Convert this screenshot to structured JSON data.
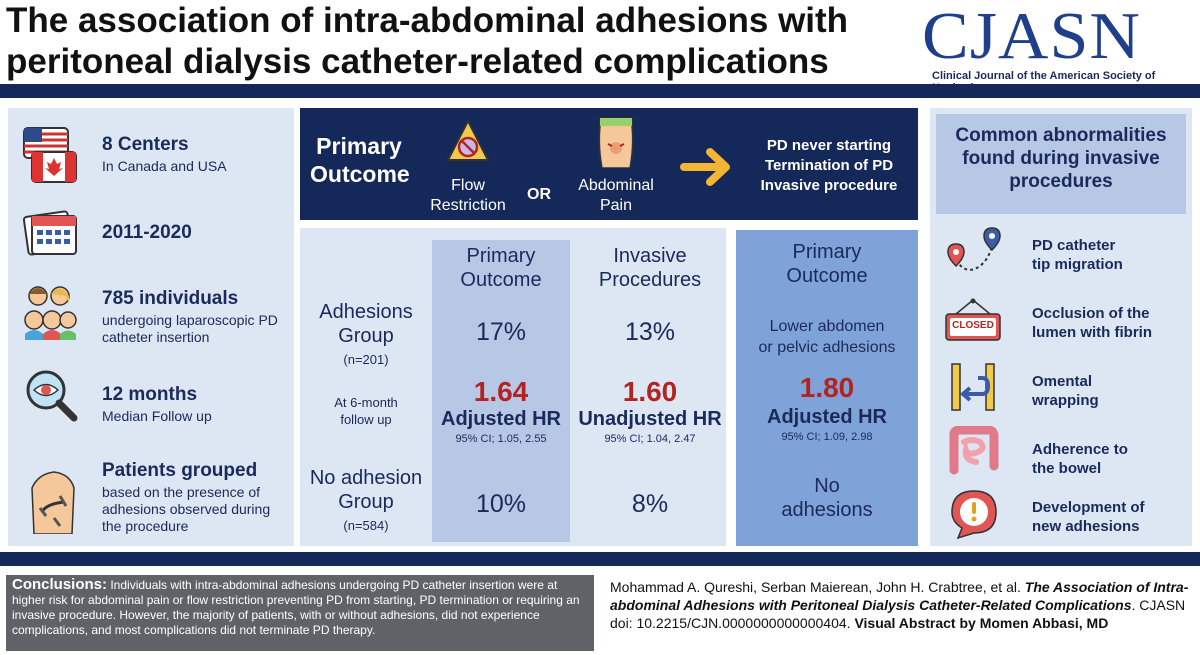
{
  "header": {
    "title_line1": "The association of intra-abdominal adhesions with",
    "title_line2": "peritoneal dialysis catheter-related complications",
    "logo_text": "CJASN",
    "logo_subtitle": "Clinical Journal of the American Society of Nephrology"
  },
  "left": {
    "items": [
      {
        "title": "8 Centers",
        "sub": "In Canada and USA",
        "icon": "flags-icon"
      },
      {
        "title": "2011-2020",
        "sub": "",
        "icon": "calendar-icon"
      },
      {
        "title": "785 individuals",
        "sub": "undergoing laparoscopic PD catheter insertion",
        "icon": "people-icon"
      },
      {
        "title": "12 months",
        "sub": "Median Follow up",
        "icon": "magnifier-eye-icon"
      },
      {
        "title": "Patients grouped",
        "sub": "based on the presence of adhesions observed during the procedure",
        "icon": "abdomen-catheter-icon"
      }
    ]
  },
  "outcome": {
    "label_line1": "Primary",
    "label_line2": "Outcome",
    "flow_line1": "Flow",
    "flow_line2": "Restriction",
    "or": "OR",
    "pain_line1": "Abdominal",
    "pain_line2": "Pain",
    "result_line1": "PD never starting",
    "result_line2": "Termination of PD",
    "result_line3": "Invasive procedure"
  },
  "table": {
    "adhesions_line1": "Adhesions",
    "adhesions_line2": "Group",
    "adhesions_n": "(n=201)",
    "followup_line1": "At 6-month",
    "followup_line2": "follow up",
    "noadh_line1": "No adhesion",
    "noadh_line2": "Group",
    "noadh_n": "(n=584)",
    "col1_head1": "Primary",
    "col1_head2": "Outcome",
    "col1_adh": "17%",
    "col1_hr": "1.64",
    "col1_hr_label": "Adjusted HR",
    "col1_ci": "95% CI; 1.05, 2.55",
    "col1_noadh": "10%",
    "col2_head1": "Invasive",
    "col2_head2": "Procedures",
    "col2_adh": "13%",
    "col2_hr": "1.60",
    "col2_hr_label": "Unadjusted HR",
    "col2_ci": "95% CI; 1.04, 2.47",
    "col2_noadh": "8%",
    "col3_head1": "Primary",
    "col3_head2": "Outcome",
    "col3_adh1": "Lower abdomen",
    "col3_adh2": "or pelvic adhesions",
    "col3_hr": "1.80",
    "col3_hr_label": "Adjusted HR",
    "col3_ci": "95% CI; 1.09, 2.98",
    "col3_noadh1": "No",
    "col3_noadh2": "adhesions"
  },
  "right": {
    "head_line1": "Common abnormalities",
    "head_line2": "found during invasive",
    "head_line3": "procedures",
    "items": [
      {
        "line1": "PD catheter",
        "line2": "tip migration",
        "icon": "location-pins-icon"
      },
      {
        "line1": "Occlusion of the",
        "line2": "lumen with fibrin",
        "icon": "closed-sign-icon"
      },
      {
        "line1": "Omental",
        "line2": "wrapping",
        "icon": "wrap-arrow-icon"
      },
      {
        "line1": "Adherence to",
        "line2": "the bowel",
        "icon": "intestine-icon"
      },
      {
        "line1": "Development of",
        "line2": "new adhesions",
        "icon": "warning-bubble-icon"
      }
    ],
    "closed_sign_text": "CLOSED"
  },
  "footer": {
    "conclusions_label": "Conclusions:",
    "conclusions_text": " Individuals with intra-abdominal adhesions undergoing PD catheter insertion were at higher risk for abdominal pain or flow restriction preventing PD from starting, PD termination or requiring an invasive procedure. However, the majority of patients, with or without adhesions, did not experience complications, and most complications did not terminate PD therapy.",
    "cite_authors": "Mohammad A. Qureshi, Serban Maierean, John H. Crabtree, et al. ",
    "cite_title": "The Association of Intra-abdominal Adhesions with Peritoneal Dialysis Catheter-Related Complications",
    "cite_doi": ". CJASN doi: 10.2215/CJN.0000000000000404. ",
    "cite_va": "Visual Abstract by Momen Abbasi, MD"
  },
  "colors": {
    "navy": "#14285a",
    "light_blue": "#dde6f3",
    "mid_blue": "#b7c8e6",
    "deep_blue": "#7fa2d8",
    "red": "#b3231f",
    "brand": "#1f3f8c"
  }
}
